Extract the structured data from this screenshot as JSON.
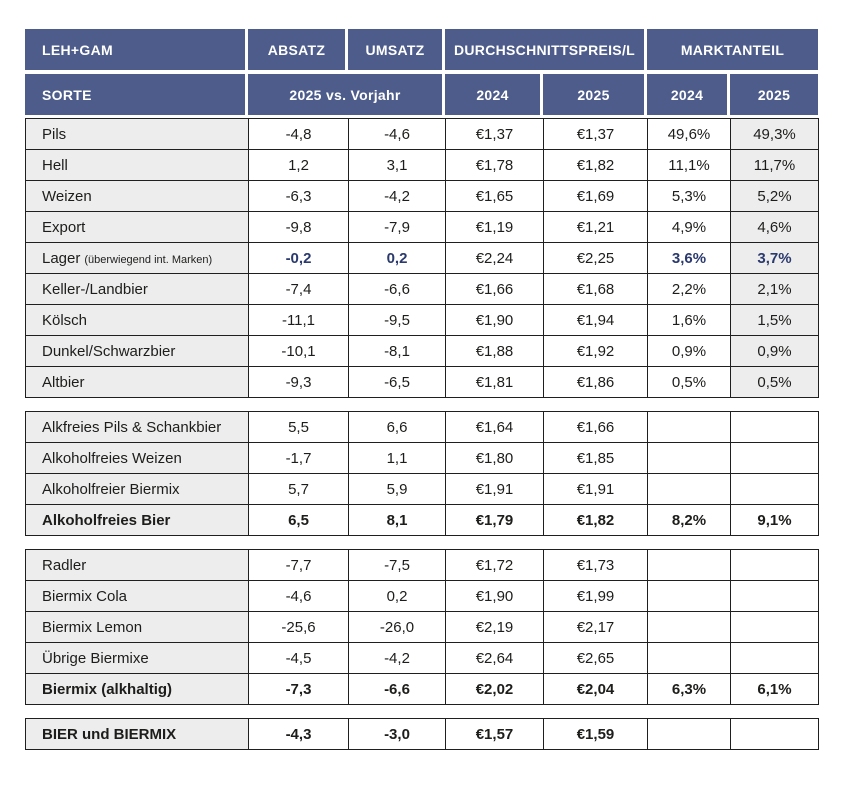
{
  "chart_data": {
    "type": "table",
    "header": {
      "leh_gam": "LEH+GAM",
      "absatz": "ABSATZ",
      "umsatz": "UMSATZ",
      "preis": "DURCHSCHNITTSPREIS/L",
      "marktanteil": "MARKTANTEIL",
      "sorte": "SORTE",
      "vorjahr": "2025 vs. Vorjahr",
      "preis_2024": "2024",
      "preis_2025": "2025",
      "markt_2024": "2024",
      "markt_2025": "2025"
    },
    "colors": {
      "header_bg": "#4d5c8a",
      "accent_text": "#2b3a6e",
      "label_bg": "#ededed",
      "border": "#1f1f1f",
      "text": "#1d1d1b"
    },
    "groups": [
      {
        "shade_last_col": true,
        "rows": [
          {
            "sorte": "Pils",
            "note": "",
            "style": "normal",
            "cells": [
              "-4,8",
              "-4,6",
              "€1,37",
              "€1,37",
              "49,6%",
              "49,3%"
            ]
          },
          {
            "sorte": "Hell",
            "note": "",
            "style": "normal",
            "cells": [
              "1,2",
              "3,1",
              "€1,78",
              "€1,82",
              "11,1%",
              "11,7%"
            ]
          },
          {
            "sorte": "Weizen",
            "note": "",
            "style": "normal",
            "cells": [
              "-6,3",
              "-4,2",
              "€1,65",
              "€1,69",
              "5,3%",
              "5,2%"
            ]
          },
          {
            "sorte": "Export",
            "note": "",
            "style": "normal",
            "cells": [
              "-9,8",
              "-7,9",
              "€1,19",
              "€1,21",
              "4,9%",
              "4,6%"
            ]
          },
          {
            "sorte": "Lager",
            "note": "(überwiegend int. Marken)",
            "style": "accent",
            "cells": [
              "-0,2",
              "0,2",
              "€2,24",
              "€2,25",
              "3,6%",
              "3,7%"
            ]
          },
          {
            "sorte": "Keller-/Landbier",
            "note": "",
            "style": "normal",
            "cells": [
              "-7,4",
              "-6,6",
              "€1,66",
              "€1,68",
              "2,2%",
              "2,1%"
            ]
          },
          {
            "sorte": "Kölsch",
            "note": "",
            "style": "normal",
            "cells": [
              "-11,1",
              "-9,5",
              "€1,90",
              "€1,94",
              "1,6%",
              "1,5%"
            ]
          },
          {
            "sorte": "Dunkel/Schwarzbier",
            "note": "",
            "style": "normal",
            "cells": [
              "-10,1",
              "-8,1",
              "€1,88",
              "€1,92",
              "0,9%",
              "0,9%"
            ]
          },
          {
            "sorte": "Altbier",
            "note": "",
            "style": "normal",
            "cells": [
              "-9,3",
              "-6,5",
              "€1,81",
              "€1,86",
              "0,5%",
              "0,5%"
            ]
          }
        ]
      },
      {
        "shade_last_col": false,
        "rows": [
          {
            "sorte": "Alkfreies Pils & Schankbier",
            "note": "",
            "style": "normal",
            "cells": [
              "5,5",
              "6,6",
              "€1,64",
              "€1,66",
              "",
              ""
            ]
          },
          {
            "sorte": "Alkoholfreies Weizen",
            "note": "",
            "style": "normal",
            "cells": [
              "-1,7",
              "1,1",
              "€1,80",
              "€1,85",
              "",
              ""
            ]
          },
          {
            "sorte": "Alkoholfreier Biermix",
            "note": "",
            "style": "normal",
            "cells": [
              "5,7",
              "5,9",
              "€1,91",
              "€1,91",
              "",
              ""
            ]
          },
          {
            "sorte": "Alkoholfreies Bier",
            "note": "",
            "style": "bold",
            "cells": [
              "6,5",
              "8,1",
              "€1,79",
              "€1,82",
              "8,2%",
              "9,1%"
            ]
          }
        ]
      },
      {
        "shade_last_col": false,
        "rows": [
          {
            "sorte": "Radler",
            "note": "",
            "style": "normal",
            "cells": [
              "-7,7",
              "-7,5",
              "€1,72",
              "€1,73",
              "",
              ""
            ]
          },
          {
            "sorte": "Biermix Cola",
            "note": "",
            "style": "normal",
            "cells": [
              "-4,6",
              "0,2",
              "€1,90",
              "€1,99",
              "",
              ""
            ]
          },
          {
            "sorte": "Biermix Lemon",
            "note": "",
            "style": "normal",
            "cells": [
              "-25,6",
              "-26,0",
              "€2,19",
              "€2,17",
              "",
              ""
            ]
          },
          {
            "sorte": "Übrige Biermixe",
            "note": "",
            "style": "normal",
            "cells": [
              "-4,5",
              "-4,2",
              "€2,64",
              "€2,65",
              "",
              ""
            ]
          },
          {
            "sorte": "Biermix (alkhaltig)",
            "note": "",
            "style": "bold",
            "cells": [
              "-7,3",
              "-6,6",
              "€2,02",
              "€2,04",
              "6,3%",
              "6,1%"
            ]
          }
        ]
      },
      {
        "shade_last_col": false,
        "rows": [
          {
            "sorte": "BIER und BIERMIX",
            "note": "",
            "style": "bold",
            "cells": [
              "-4,3",
              "-3,0",
              "€1,57",
              "€1,59",
              "",
              ""
            ]
          }
        ]
      }
    ]
  }
}
